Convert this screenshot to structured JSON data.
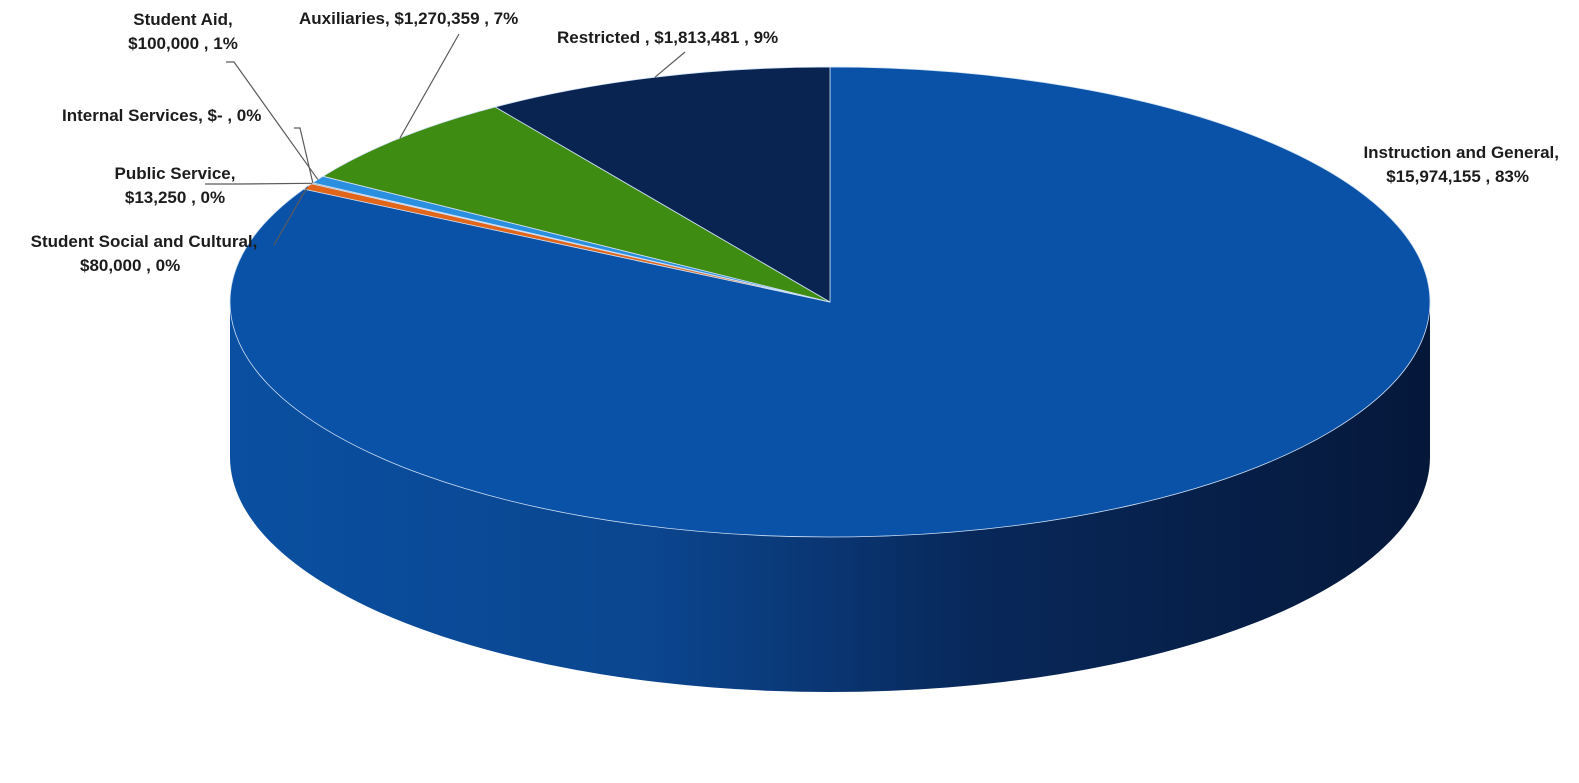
{
  "chart_data": {
    "type": "pie",
    "variant": "3d",
    "legend": "none",
    "slices": [
      {
        "label": "Instruction and General",
        "value": 15974155,
        "value_text": "$15,974,155",
        "percent_text": "83%",
        "color": "#0a52a8"
      },
      {
        "label": "Student Social and Cultural",
        "value": 80000,
        "value_text": "$80,000",
        "percent_text": "0%",
        "color": "#e2661a"
      },
      {
        "label": "Public Service",
        "value": 13250,
        "value_text": "$13,250",
        "percent_text": "0%",
        "color": "#8a8a8a"
      },
      {
        "label": "Internal Services",
        "value": 0,
        "value_text": "$-",
        "percent_text": "0%",
        "color": "#e7b400"
      },
      {
        "label": "Student Aid",
        "value": 100000,
        "value_text": "$100,000",
        "percent_text": "1%",
        "color": "#2b8fe0"
      },
      {
        "label": "Auxiliaries",
        "value": 1270359,
        "value_text": "$1,270,359",
        "percent_text": "7%",
        "color": "#3f8c12"
      },
      {
        "label": "Restricted",
        "value": 1813481,
        "value_text": "$1,813,481",
        "percent_text": "9%",
        "color": "#0a2452"
      }
    ]
  },
  "labels": {
    "instruction": {
      "line1": "Instruction and General,",
      "line2": "$15,974,155 , 83%"
    },
    "social": {
      "line1": "Student Social and Cultural,",
      "line2": "$80,000 , 0%"
    },
    "public": {
      "line1": "Public Service,",
      "line2": "$13,250 , 0%"
    },
    "internal": {
      "line1": "Internal Services,  $- , 0%"
    },
    "aid": {
      "line1": "Student Aid,",
      "line2": "$100,000 , 1%"
    },
    "aux": {
      "line1": "Auxiliaries,  $1,270,359 , 7%"
    },
    "restricted": {
      "line1": "Restricted ,  $1,813,481 , 9%"
    }
  }
}
